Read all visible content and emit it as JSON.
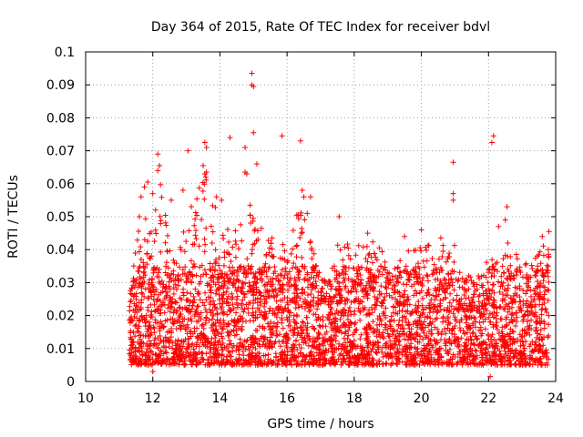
{
  "chart_data": {
    "type": "scatter",
    "title": "Day 364 of 2015, Rate Of TEC Index for receiver bdvl",
    "xlabel": "GPS time / hours",
    "ylabel": "ROTI / TECUs",
    "xlim": [
      10,
      24
    ],
    "ylim": [
      0,
      0.1
    ],
    "x_ticks": [
      "10",
      "12",
      "14",
      "16",
      "18",
      "20",
      "22",
      "24"
    ],
    "y_ticks": [
      "0",
      "0.01",
      "0.02",
      "0.03",
      "0.04",
      "0.05",
      "0.06",
      "0.07",
      "0.08",
      "0.09",
      "0.1"
    ],
    "grid": true,
    "marker": "+",
    "color": "#ff0000",
    "series": [
      {
        "name": "ROTI",
        "data_range_hours": [
          11.3,
          23.8
        ],
        "points_per_hour": 320,
        "typical_range": [
          0.005,
          0.035
        ],
        "envelope": [
          [
            11.3,
            0.028
          ],
          [
            11.7,
            0.055
          ],
          [
            12.0,
            0.045
          ],
          [
            12.2,
            0.062
          ],
          [
            12.6,
            0.04
          ],
          [
            13.0,
            0.05
          ],
          [
            13.5,
            0.065
          ],
          [
            13.8,
            0.055
          ],
          [
            14.0,
            0.05
          ],
          [
            14.4,
            0.045
          ],
          [
            14.8,
            0.052
          ],
          [
            15.2,
            0.048
          ],
          [
            15.6,
            0.045
          ],
          [
            16.0,
            0.04
          ],
          [
            16.4,
            0.055
          ],
          [
            16.8,
            0.04
          ],
          [
            17.2,
            0.03
          ],
          [
            17.6,
            0.045
          ],
          [
            18.0,
            0.04
          ],
          [
            18.4,
            0.045
          ],
          [
            18.8,
            0.04
          ],
          [
            19.2,
            0.035
          ],
          [
            19.6,
            0.04
          ],
          [
            20.0,
            0.043
          ],
          [
            20.4,
            0.04
          ],
          [
            20.8,
            0.048
          ],
          [
            21.2,
            0.035
          ],
          [
            21.6,
            0.03
          ],
          [
            22.0,
            0.038
          ],
          [
            22.4,
            0.045
          ],
          [
            22.8,
            0.04
          ],
          [
            23.2,
            0.035
          ],
          [
            23.8,
            0.045
          ]
        ],
        "outliers": [
          [
            14.95,
            0.0935
          ],
          [
            14.95,
            0.09
          ],
          [
            15.0,
            0.0895
          ],
          [
            15.0,
            0.0755
          ],
          [
            15.85,
            0.0745
          ],
          [
            14.75,
            0.071
          ],
          [
            14.3,
            0.074
          ],
          [
            16.4,
            0.073
          ],
          [
            22.15,
            0.0745
          ],
          [
            22.1,
            0.0725
          ],
          [
            20.95,
            0.0665
          ],
          [
            13.55,
            0.0725
          ],
          [
            13.6,
            0.071
          ],
          [
            12.15,
            0.069
          ],
          [
            12.2,
            0.0655
          ],
          [
            12.15,
            0.064
          ],
          [
            13.05,
            0.07
          ],
          [
            14.75,
            0.0635
          ],
          [
            14.8,
            0.063
          ],
          [
            13.5,
            0.0655
          ],
          [
            13.55,
            0.063
          ],
          [
            13.6,
            0.0635
          ],
          [
            16.45,
            0.058
          ],
          [
            16.5,
            0.056
          ],
          [
            16.7,
            0.056
          ],
          [
            20.95,
            0.057
          ],
          [
            20.95,
            0.055
          ],
          [
            22.55,
            0.053
          ],
          [
            12.55,
            0.055
          ],
          [
            11.65,
            0.056
          ],
          [
            11.75,
            0.059
          ],
          [
            11.85,
            0.0605
          ],
          [
            12.0,
            0.057
          ],
          [
            12.9,
            0.058
          ],
          [
            14.9,
            0.0535
          ],
          [
            15.1,
            0.066
          ],
          [
            16.6,
            0.051
          ],
          [
            17.55,
            0.05
          ],
          [
            11.6,
            0.05
          ],
          [
            13.9,
            0.056
          ],
          [
            14.05,
            0.055
          ],
          [
            23.8,
            0.0455
          ],
          [
            23.6,
            0.044
          ],
          [
            22.5,
            0.049
          ],
          [
            22.3,
            0.047
          ],
          [
            20.0,
            0.046
          ],
          [
            19.5,
            0.044
          ],
          [
            18.4,
            0.045
          ],
          [
            21.7,
            0.032
          ],
          [
            22.05,
            0.0015
          ],
          [
            17.05,
            0.005
          ],
          [
            12.0,
            0.003
          ]
        ]
      }
    ]
  }
}
